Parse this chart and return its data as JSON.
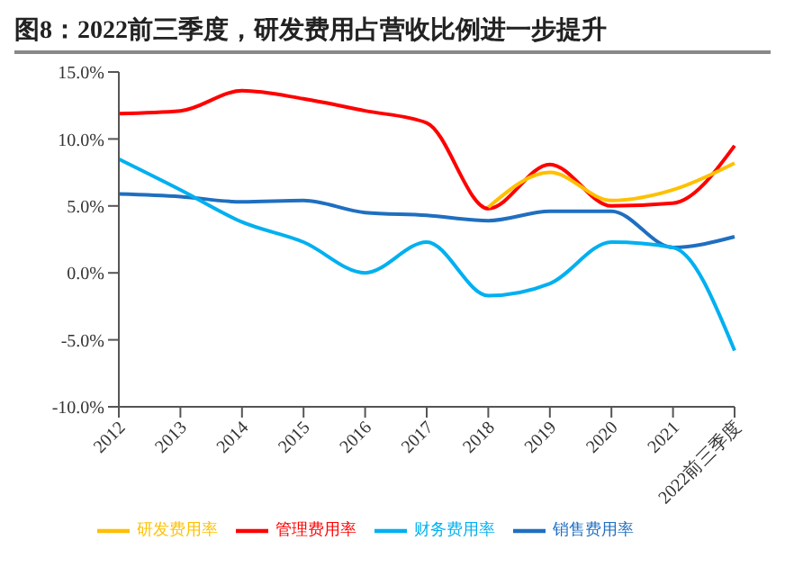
{
  "chart_data": {
    "type": "line",
    "title": "图8：2022前三季度，研发费用占营收比例进一步提升",
    "categories": [
      "2012",
      "2013",
      "2014",
      "2015",
      "2016",
      "2017",
      "2018",
      "2019",
      "2020",
      "2021",
      "2022前三季度"
    ],
    "series": [
      {
        "name": "销售费用率",
        "color": "#1f6fc0",
        "values": [
          5.9,
          5.7,
          5.3,
          5.4,
          4.5,
          4.3,
          3.9,
          4.6,
          4.6,
          1.9,
          2.7
        ]
      },
      {
        "name": "管理费用率",
        "color": "#ff0000",
        "values": [
          11.9,
          12.1,
          13.6,
          13.0,
          12.1,
          11.2,
          4.8,
          8.1,
          5.0,
          5.2,
          9.5
        ]
      },
      {
        "name": "研发费用率",
        "color": "#ffc000",
        "values": [
          null,
          null,
          null,
          null,
          null,
          null,
          4.9,
          7.5,
          5.4,
          6.2,
          8.2
        ]
      },
      {
        "name": "财务费用率",
        "color": "#00b0f0",
        "values": [
          8.5,
          6.2,
          3.8,
          2.3,
          0.0,
          2.3,
          -1.7,
          -0.8,
          2.3,
          1.9,
          -5.8
        ]
      }
    ],
    "ylim": [
      -10,
      15
    ],
    "yticks": [
      {
        "value": -10,
        "label": "-10.0%"
      },
      {
        "value": -5,
        "label": "-5.0%"
      },
      {
        "value": 0,
        "label": "0.0%"
      },
      {
        "value": 5,
        "label": "5.0%"
      },
      {
        "value": 10,
        "label": "10.0%"
      },
      {
        "value": 15,
        "label": "15.0%"
      }
    ],
    "grid": false,
    "legend": "bottom",
    "marker": "none",
    "line_style": "solid"
  }
}
